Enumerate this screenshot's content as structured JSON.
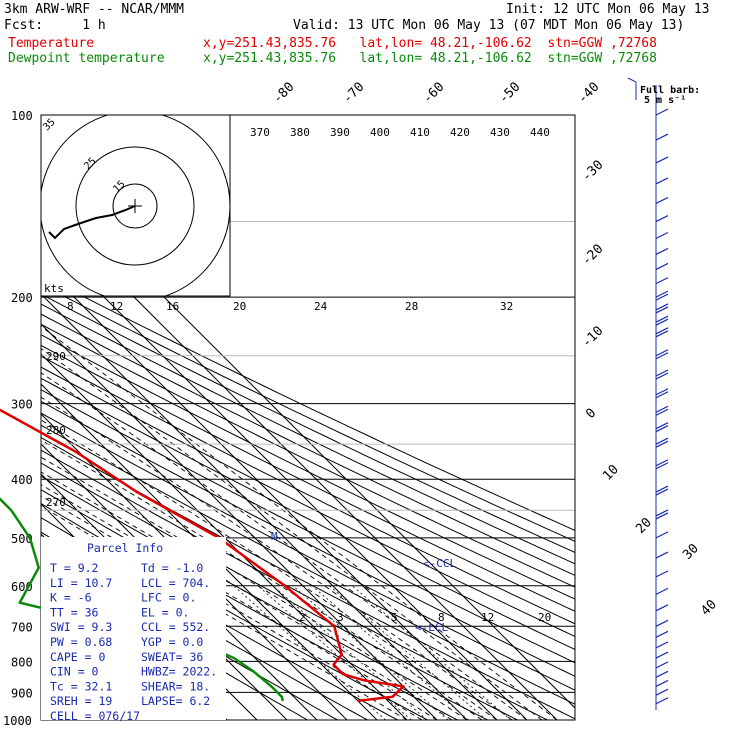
{
  "header": {
    "model": "3km ARW-WRF -- NCAR/MMM",
    "init": "Init: 12 UTC Mon 06 May 13",
    "fcst": "Fcst:     1 h",
    "valid": "Valid: 13 UTC Mon 06 May 13 (07 MDT Mon 06 May 13)",
    "temp_label": "Temperature",
    "temp_loc": "x,y=251.43,835.76   lat,lon= 48.21,-106.62  stn=GGW ,72768",
    "dew_label": "Dewpoint temperature",
    "dew_loc": "x,y=251.43,835.76   lat,lon= 48.21,-106.62  stn=GGW ,72768"
  },
  "colors": {
    "temperature": "#e00000",
    "dewpoint": "#0a8a0a",
    "text": "#1a2bb0",
    "barb": "#1a2bb0"
  },
  "chart_data": {
    "type": "line",
    "title": "",
    "xlabel": "",
    "ylabel": "",
    "y_scale": "log-pressure",
    "ylim": [
      1000,
      100
    ],
    "pressure_ticks": [
      "100",
      "200",
      "300",
      "400",
      "500",
      "600",
      "700",
      "800",
      "900",
      "1000"
    ],
    "skew_temp_labels": [
      "-80",
      "-70",
      "-60",
      "-50",
      "-40",
      "-30",
      "-20",
      "-10",
      "0",
      "10",
      "20",
      "30",
      "40"
    ],
    "theta_labels": [
      "370",
      "380",
      "390",
      "400",
      "410",
      "420",
      "430",
      "440"
    ],
    "theta_side_labels": [
      "290",
      "280",
      "270"
    ],
    "mixing_ratio_labels": [
      "2",
      "3",
      "5",
      "8",
      "12",
      "20"
    ],
    "upper_labels": [
      "8",
      "12",
      "16",
      "20",
      "24",
      "28",
      "32"
    ],
    "series": [
      {
        "name": "Temperature",
        "points": [
          [
            930,
            -20
          ],
          [
            915,
            -7
          ],
          [
            880,
            0
          ],
          [
            860,
            -11
          ],
          [
            840,
            -16
          ],
          [
            810,
            -16
          ],
          [
            780,
            -10
          ],
          [
            700,
            -3
          ],
          [
            600,
            -6
          ],
          [
            500,
            -12
          ],
          [
            420,
            -24
          ],
          [
            360,
            -31
          ],
          [
            300,
            -44
          ],
          [
            240,
            -55
          ],
          [
            200,
            -65
          ],
          [
            180,
            -67
          ],
          [
            160,
            -60
          ],
          [
            140,
            -52
          ],
          [
            120,
            -42
          ],
          [
            110,
            -38
          ],
          [
            100,
            -36
          ]
        ]
      },
      {
        "name": "Dewpoint temperature",
        "points": [
          [
            930,
            -45
          ],
          [
            915,
            -44
          ],
          [
            880,
            -44
          ],
          [
            830,
            -45
          ],
          [
            790,
            -47
          ],
          [
            750,
            -53
          ],
          [
            720,
            -60
          ],
          [
            700,
            -75
          ],
          [
            640,
            -100
          ],
          [
            560,
            -82
          ],
          [
            500,
            -75
          ],
          [
            450,
            -72
          ],
          [
            420,
            -72
          ],
          [
            350,
            -64
          ],
          [
            300,
            -71
          ],
          [
            250,
            -81
          ],
          [
            200,
            -91
          ],
          [
            150,
            -96
          ],
          [
            120,
            -100
          ],
          [
            110,
            -97
          ],
          [
            100,
            -93
          ]
        ]
      }
    ],
    "wind_barbs": [
      "100",
      "110",
      "120",
      "130",
      "140",
      "150",
      "160",
      "170",
      "180",
      "190",
      "200",
      "210",
      "220",
      "230",
      "250",
      "270",
      "290",
      "310",
      "330",
      "350",
      "380",
      "420",
      "460",
      "500",
      "540",
      "580",
      "620",
      "660",
      "700",
      "730",
      "760",
      "790",
      "820",
      "850",
      "880",
      "910",
      "940"
    ]
  },
  "hodograph": {
    "units_label": "kts",
    "ring_labels": [
      "15",
      "25",
      "35"
    ]
  },
  "parcel_info": {
    "title": "Parcel Info",
    "rows": [
      [
        "T  =      9.2",
        "Td =   -1.0"
      ],
      [
        "LI =     10.7",
        "LCL =  704."
      ],
      [
        "K  =       -6",
        "LFC =    0."
      ],
      [
        "TT =       36",
        "EL  =    0."
      ],
      [
        "SWI =     9.3",
        "CCL =  552."
      ],
      [
        "PW =     0.68",
        "YGP =   0.0"
      ],
      [
        "CAPE =      0",
        "SWEAT=   36"
      ],
      [
        "CIN =       0",
        "HWBZ= 2022."
      ],
      [
        "Tc =     32.1",
        "SHEAR=  18."
      ],
      [
        "SREH =     19",
        "LAPSE=  6.2"
      ],
      [
        "CELL = 076/17",
        ""
      ]
    ]
  },
  "markers": {
    "ccl": "CCL",
    "lcl": "LCL",
    "m": "M"
  },
  "barb_legend": {
    "line1": "Full barb:",
    "line2": "5 m s⁻¹"
  }
}
